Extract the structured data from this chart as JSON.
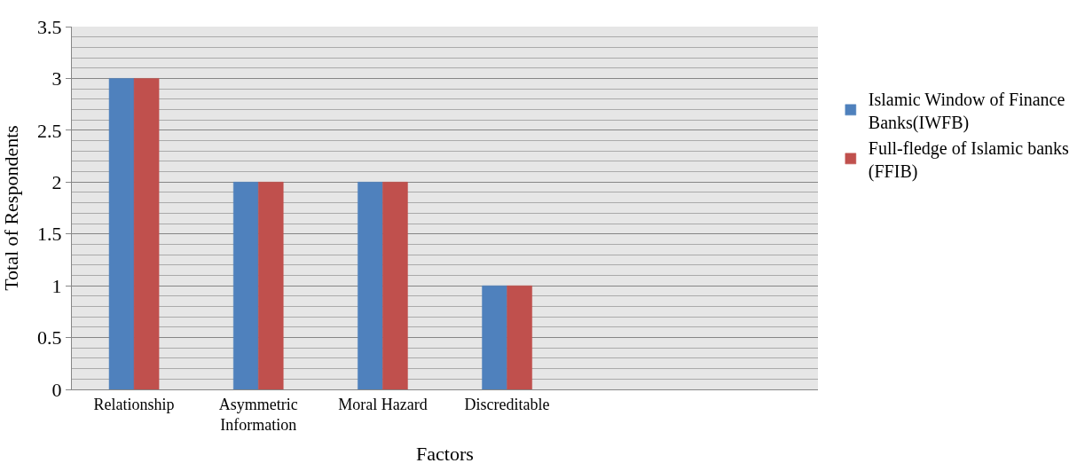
{
  "chart_data": {
    "type": "bar",
    "xlabel": "Factors",
    "ylabel": "Total of Respondents",
    "categories": [
      "Relationship",
      "Asymmetric Information",
      "Moral Hazard",
      "Discreditable",
      null,
      null
    ],
    "series": [
      {
        "name": "Islamic Window of Finance Banks(IWFB)",
        "color": "#4f81bd",
        "values": [
          3,
          2,
          2,
          1,
          null,
          null
        ]
      },
      {
        "name": "Full-fledge of Islamic banks (FFIB)",
        "color": "#c0504d",
        "values": [
          3,
          2,
          2,
          1,
          null,
          null
        ]
      }
    ],
    "ylim": [
      0,
      3.5
    ],
    "yticks": [
      0,
      0.5,
      1,
      1.5,
      2,
      2.5,
      3,
      3.5
    ],
    "grid": "y",
    "legend": "right"
  }
}
